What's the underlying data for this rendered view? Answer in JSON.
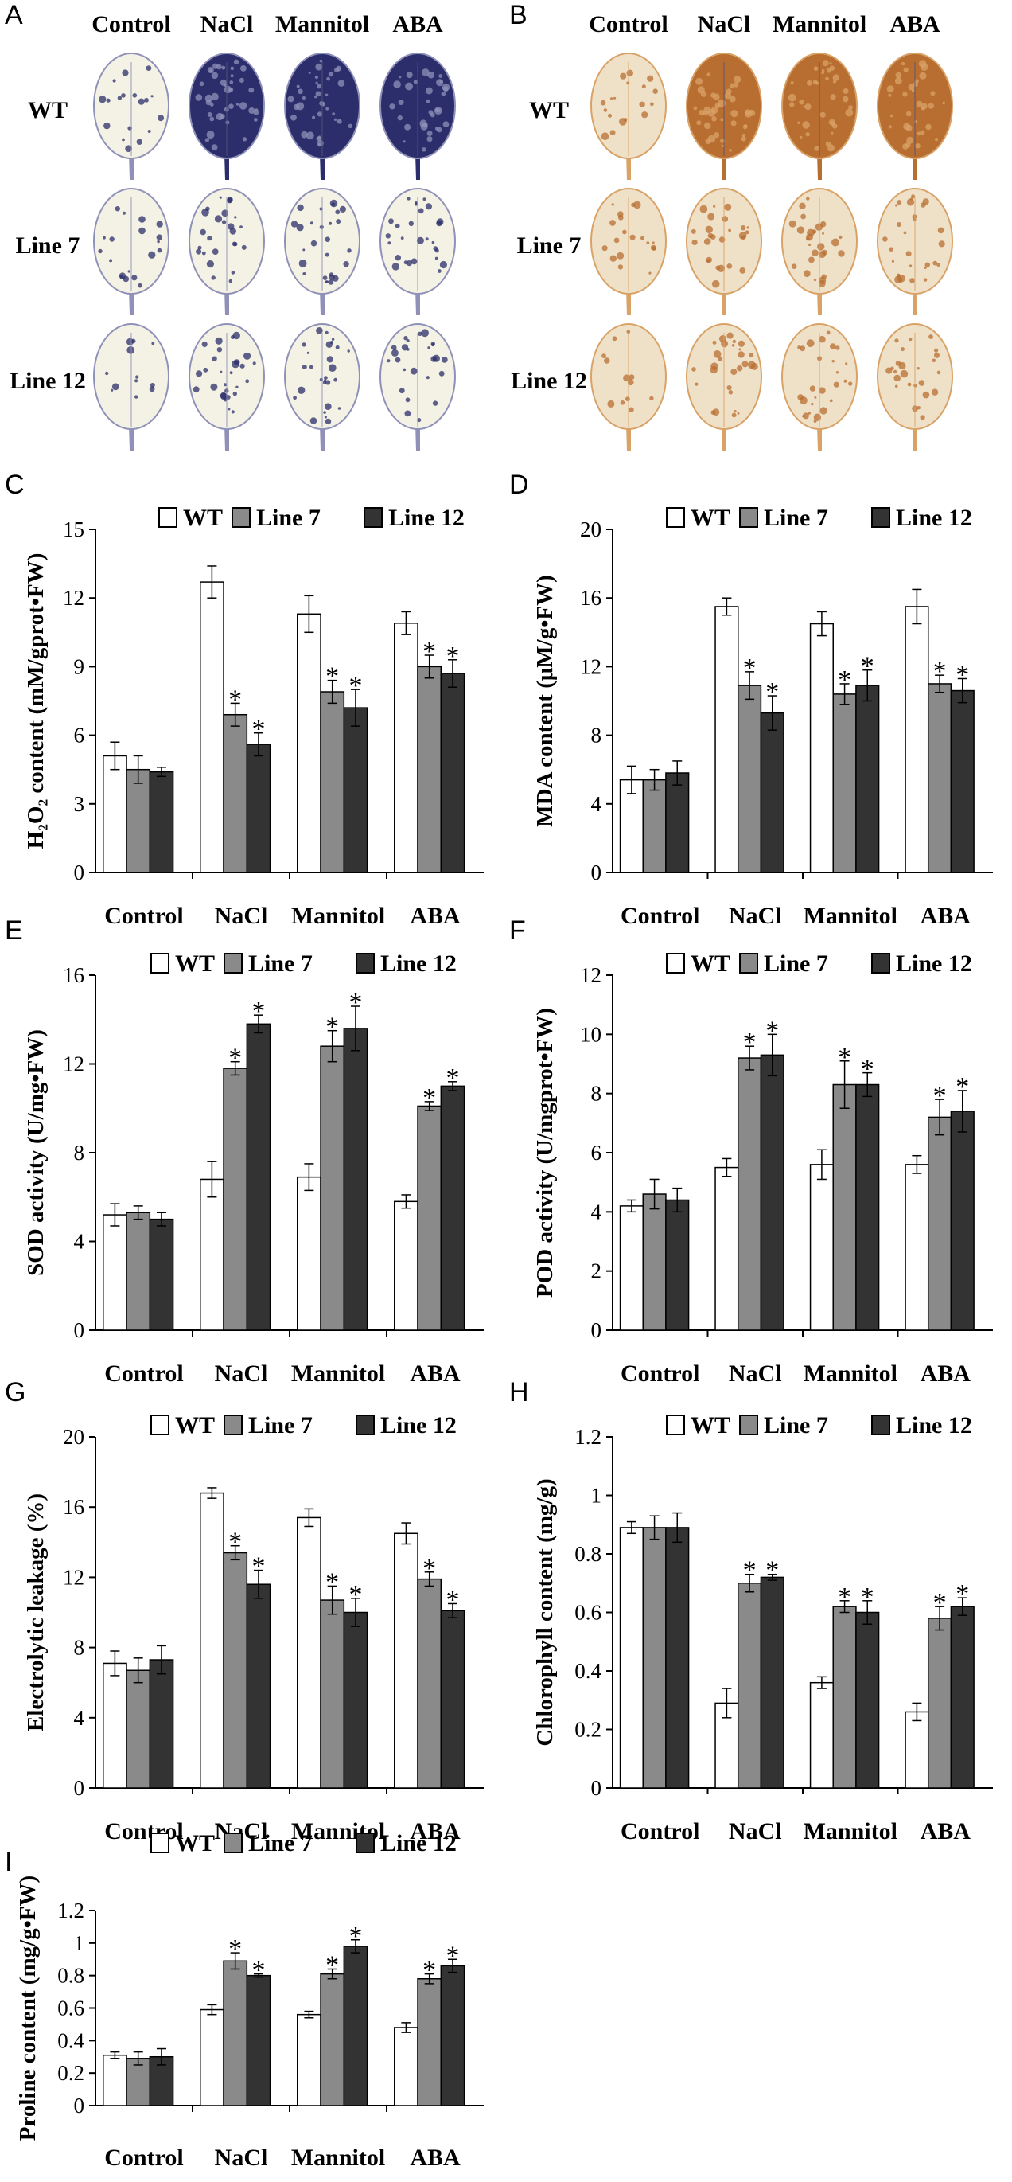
{
  "panels": {
    "A": {
      "letter": "A",
      "columns": [
        "Control",
        "NaCl",
        "Mannitol",
        "ABA"
      ],
      "rows": [
        "WT",
        "Line 7",
        "Line 12"
      ],
      "colors": {
        "bg": "#ffffff",
        "stain": "#2b2e6b",
        "stain_light": "#8f91b8",
        "pale": "#f4f2e4"
      }
    },
    "B": {
      "letter": "B",
      "columns": [
        "Control",
        "NaCl",
        "Mannitol",
        "ABA"
      ],
      "rows": [
        "WT",
        "Line 7",
        "Line 12"
      ],
      "colors": {
        "bg": "#ffffff",
        "stain": "#b86e30",
        "stain_light": "#d9a267",
        "pale": "#efe1c8"
      }
    }
  },
  "legend": {
    "wt": "WT",
    "line7": "Line 7",
    "line12": "Line 12"
  },
  "colors": {
    "wt": "#ffffff",
    "line7": "#8a8a8a",
    "line12": "#333333",
    "axis": "#000000"
  },
  "chart_data": [
    {
      "id": "C",
      "letter": "C",
      "type": "bar",
      "ylabel": "H₂O₂ content (mM/gprot•FW)",
      "categories": [
        "Control",
        "NaCl",
        "Mannitol",
        "ABA"
      ],
      "ylim": [
        0,
        15
      ],
      "yticks": [
        0,
        3,
        6,
        9,
        12,
        15
      ],
      "ytick_labels": [
        "0",
        "3",
        "6",
        "9",
        "12",
        "15"
      ],
      "series": [
        {
          "name": "WT",
          "values": [
            5.1,
            12.7,
            11.3,
            10.9
          ],
          "errors": [
            0.6,
            0.7,
            0.8,
            0.5
          ],
          "sig": [
            false,
            false,
            false,
            false
          ]
        },
        {
          "name": "Line 7",
          "values": [
            4.5,
            6.9,
            7.9,
            9.0
          ],
          "errors": [
            0.6,
            0.5,
            0.5,
            0.5
          ],
          "sig": [
            false,
            true,
            true,
            true
          ]
        },
        {
          "name": "Line 12",
          "values": [
            4.4,
            5.6,
            7.2,
            8.7
          ],
          "errors": [
            0.2,
            0.5,
            0.8,
            0.6
          ],
          "sig": [
            false,
            true,
            true,
            true
          ]
        }
      ]
    },
    {
      "id": "D",
      "letter": "D",
      "type": "bar",
      "ylabel": "MDA content (μM/g•FW)",
      "categories": [
        "Control",
        "NaCl",
        "Mannitol",
        "ABA"
      ],
      "ylim": [
        0,
        20
      ],
      "yticks": [
        0,
        4,
        8,
        12,
        16,
        20
      ],
      "ytick_labels": [
        "0",
        "4",
        "8",
        "12",
        "16",
        "20"
      ],
      "series": [
        {
          "name": "WT",
          "values": [
            5.4,
            15.5,
            14.5,
            15.5
          ],
          "errors": [
            0.8,
            0.5,
            0.7,
            1.0
          ],
          "sig": [
            false,
            false,
            false,
            false
          ]
        },
        {
          "name": "Line 7",
          "values": [
            5.4,
            10.9,
            10.4,
            11.0
          ],
          "errors": [
            0.6,
            0.8,
            0.6,
            0.5
          ],
          "sig": [
            false,
            true,
            true,
            true
          ]
        },
        {
          "name": "Line 12",
          "values": [
            5.8,
            9.3,
            10.9,
            10.6
          ],
          "errors": [
            0.7,
            1.0,
            0.9,
            0.7
          ],
          "sig": [
            false,
            true,
            true,
            true
          ]
        }
      ]
    },
    {
      "id": "E",
      "letter": "E",
      "type": "bar",
      "ylabel": "SOD activity (U/mg•FW)",
      "categories": [
        "Control",
        "NaCl",
        "Mannitol",
        "ABA"
      ],
      "ylim": [
        0,
        16
      ],
      "yticks": [
        0,
        4,
        8,
        12,
        16
      ],
      "ytick_labels": [
        "0",
        "4",
        "8",
        "12",
        "16"
      ],
      "series": [
        {
          "name": "WT",
          "values": [
            5.2,
            6.8,
            6.9,
            5.8
          ],
          "errors": [
            0.5,
            0.8,
            0.6,
            0.3
          ],
          "sig": [
            false,
            false,
            false,
            false
          ]
        },
        {
          "name": "Line 7",
          "values": [
            5.3,
            11.8,
            12.8,
            10.1
          ],
          "errors": [
            0.3,
            0.3,
            0.7,
            0.2
          ],
          "sig": [
            false,
            true,
            true,
            true
          ]
        },
        {
          "name": "Line 12",
          "values": [
            5.0,
            13.8,
            13.6,
            11.0
          ],
          "errors": [
            0.3,
            0.4,
            1.0,
            0.2
          ],
          "sig": [
            false,
            true,
            true,
            true
          ]
        }
      ]
    },
    {
      "id": "F",
      "letter": "F",
      "type": "bar",
      "ylabel": "POD activity (U/mgprot•FW)",
      "categories": [
        "Control",
        "NaCl",
        "Mannitol",
        "ABA"
      ],
      "ylim": [
        0,
        12
      ],
      "yticks": [
        0,
        2,
        4,
        6,
        8,
        10,
        12
      ],
      "ytick_labels": [
        "0",
        "2",
        "4",
        "6",
        "8",
        "10",
        "12"
      ],
      "series": [
        {
          "name": "WT",
          "values": [
            4.2,
            5.5,
            5.6,
            5.6
          ],
          "errors": [
            0.2,
            0.3,
            0.5,
            0.3
          ],
          "sig": [
            false,
            false,
            false,
            false
          ]
        },
        {
          "name": "Line 7",
          "values": [
            4.6,
            9.2,
            8.3,
            7.2
          ],
          "errors": [
            0.5,
            0.4,
            0.8,
            0.6
          ],
          "sig": [
            false,
            true,
            true,
            true
          ]
        },
        {
          "name": "Line 12",
          "values": [
            4.4,
            9.3,
            8.3,
            7.4
          ],
          "errors": [
            0.4,
            0.7,
            0.4,
            0.7
          ],
          "sig": [
            false,
            true,
            true,
            true
          ]
        }
      ]
    },
    {
      "id": "G",
      "letter": "G",
      "type": "bar",
      "ylabel": "Electrolytic leakage (%)",
      "categories": [
        "Control",
        "NaCl",
        "Mannitol",
        "ABA"
      ],
      "ylim": [
        0,
        20
      ],
      "yticks": [
        0,
        4,
        8,
        12,
        16,
        20
      ],
      "ytick_labels": [
        "0",
        "4",
        "8",
        "12",
        "16",
        "20"
      ],
      "series": [
        {
          "name": "WT",
          "values": [
            7.1,
            16.8,
            15.4,
            14.5
          ],
          "errors": [
            0.7,
            0.3,
            0.5,
            0.6
          ],
          "sig": [
            false,
            false,
            false,
            false
          ]
        },
        {
          "name": "Line 7",
          "values": [
            6.7,
            13.4,
            10.7,
            11.9
          ],
          "errors": [
            0.7,
            0.4,
            0.8,
            0.4
          ],
          "sig": [
            false,
            true,
            true,
            true
          ]
        },
        {
          "name": "Line 12",
          "values": [
            7.3,
            11.6,
            10.0,
            10.1
          ],
          "errors": [
            0.8,
            0.8,
            0.8,
            0.4
          ],
          "sig": [
            false,
            true,
            true,
            true
          ]
        }
      ]
    },
    {
      "id": "H",
      "letter": "H",
      "type": "bar",
      "ylabel": "Chlorophyll content (mg/g)",
      "categories": [
        "Control",
        "NaCl",
        "Mannitol",
        "ABA"
      ],
      "ylim": [
        0,
        1.2
      ],
      "yticks": [
        0,
        0.2,
        0.4,
        0.6,
        0.8,
        1.0,
        1.2
      ],
      "ytick_labels": [
        "0",
        "0.2",
        "0.4",
        "0.6",
        "0.8",
        "1",
        "1.2"
      ],
      "series": [
        {
          "name": "WT",
          "values": [
            0.89,
            0.29,
            0.36,
            0.26
          ],
          "errors": [
            0.02,
            0.05,
            0.02,
            0.03
          ],
          "sig": [
            false,
            false,
            false,
            false
          ]
        },
        {
          "name": "Line 7",
          "values": [
            0.89,
            0.7,
            0.62,
            0.58
          ],
          "errors": [
            0.04,
            0.03,
            0.02,
            0.04
          ],
          "sig": [
            false,
            true,
            true,
            true
          ]
        },
        {
          "name": "Line 12",
          "values": [
            0.89,
            0.72,
            0.6,
            0.62
          ],
          "errors": [
            0.05,
            0.01,
            0.04,
            0.03
          ],
          "sig": [
            false,
            true,
            true,
            true
          ]
        }
      ]
    },
    {
      "id": "I",
      "letter": "I",
      "type": "bar",
      "ylabel": "Proline content (mg/g•FW)",
      "categories": [
        "Control",
        "NaCl",
        "Mannitol",
        "ABA"
      ],
      "ylim": [
        0,
        1.2
      ],
      "yticks": [
        0,
        0.2,
        0.4,
        0.6,
        0.8,
        1.0,
        1.2
      ],
      "ytick_labels": [
        "0",
        "0.2",
        "0.4",
        "0.6",
        "0.8",
        "1",
        "1.2"
      ],
      "series": [
        {
          "name": "WT",
          "values": [
            0.31,
            0.59,
            0.56,
            0.48
          ],
          "errors": [
            0.02,
            0.03,
            0.02,
            0.03
          ],
          "sig": [
            false,
            false,
            false,
            false
          ]
        },
        {
          "name": "Line 7",
          "values": [
            0.29,
            0.89,
            0.81,
            0.78
          ],
          "errors": [
            0.04,
            0.05,
            0.03,
            0.03
          ],
          "sig": [
            false,
            true,
            true,
            true
          ]
        },
        {
          "name": "Line 12",
          "values": [
            0.3,
            0.8,
            0.98,
            0.86
          ],
          "errors": [
            0.05,
            0.01,
            0.04,
            0.04
          ],
          "sig": [
            false,
            true,
            true,
            true
          ]
        }
      ]
    }
  ]
}
